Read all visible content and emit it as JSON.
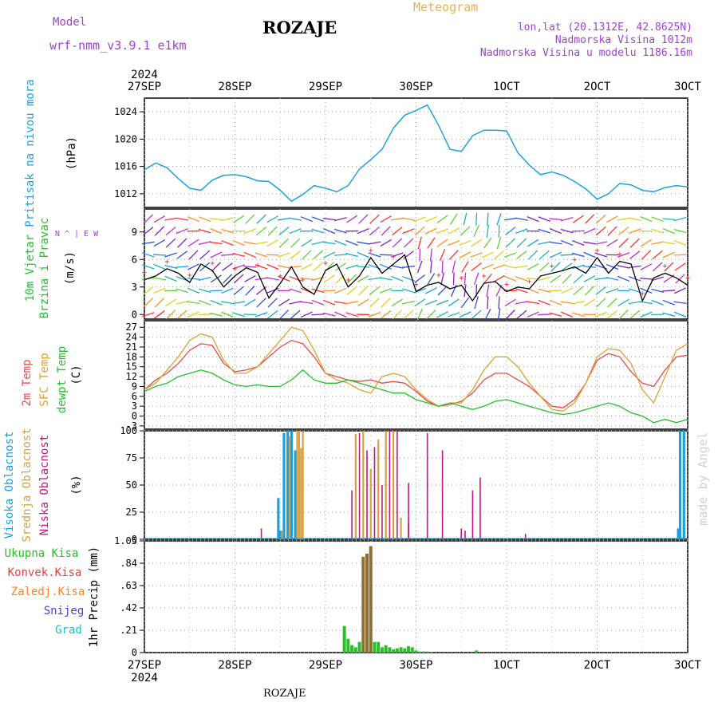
{
  "header": {
    "title": "ROZAJE",
    "subtitle": "Meteogram",
    "model_label": "Model",
    "model_name": "wrf-nmm_v3.9.1  e1km",
    "location": "lon,lat (20.1312E, 42.8625N)",
    "elevation": "Nadmorska Visina 1012m",
    "model_elevation": "Nadmorska Visina u modelu 1186.16m",
    "watermark": "made by Angel"
  },
  "footer": {
    "station": "ROZAJE"
  },
  "colors": {
    "pressure": "#1aa3e0",
    "temp2m": "#e84a4a",
    "sfc_temp": "#e0a030",
    "dewpoint": "#22c02a",
    "high_cloud": "#1a9fe0",
    "mid_cloud": "#d8a040",
    "low_cloud": "#c01880",
    "precip_total": "#28c028",
    "precip_conv": "#e84040",
    "precip_strat": "#ff8020",
    "snow": "#4040e0",
    "graupel": "#20c0c0",
    "label_purple": "#a040d0"
  },
  "chart_data": [
    {
      "type": "line",
      "panel": "pressure",
      "ylabel": "Pritisak na nivou mora",
      "unit": "(hPa)",
      "ylim": [
        1010,
        1026
      ],
      "yticks": [
        1012,
        1016,
        1020,
        1024
      ],
      "x_hours": [
        0,
        3,
        6,
        9,
        12,
        15,
        18,
        21,
        24,
        27,
        30,
        33,
        36,
        39,
        42,
        45,
        48,
        51,
        54,
        57,
        60,
        63,
        66,
        69,
        72,
        75,
        78,
        81,
        84,
        87,
        90,
        93,
        96,
        99,
        102,
        105,
        108,
        111,
        114,
        117,
        120,
        123,
        126,
        129,
        132,
        135,
        138,
        141,
        144
      ],
      "values": [
        1015.5,
        1016.5,
        1015.8,
        1014.2,
        1012.8,
        1012.5,
        1014,
        1014.7,
        1014.8,
        1014.5,
        1013.9,
        1013.8,
        1012.5,
        1010.9,
        1011.9,
        1013.2,
        1012.8,
        1012.3,
        1013.2,
        1015.6,
        1017,
        1018.5,
        1021.6,
        1023.5,
        1024.2,
        1025,
        1022,
        1018.5,
        1018.2,
        1020.5,
        1021.3,
        1021.3,
        1021.2,
        1018,
        1016.2,
        1014.8,
        1015.2,
        1014.7,
        1013.8,
        1012.7,
        1011.2,
        1012,
        1013.5,
        1013.3,
        1012.5,
        1012.3,
        1012.9,
        1013.2,
        1013
      ]
    },
    {
      "type": "line",
      "panel": "wind",
      "ylabel": "10m Vjetar Brzina i Pravac",
      "unit": "(m/s)",
      "legend_compass": "N ^ | E W",
      "ylim": [
        -0.5,
        11.5
      ],
      "yticks": [
        0,
        3,
        6,
        9
      ],
      "x_hours": [
        0,
        3,
        6,
        9,
        12,
        15,
        18,
        21,
        24,
        27,
        30,
        33,
        36,
        39,
        42,
        45,
        48,
        51,
        54,
        57,
        60,
        63,
        66,
        69,
        72,
        75,
        78,
        81,
        84,
        87,
        90,
        93,
        96,
        99,
        102,
        105,
        108,
        111,
        114,
        117,
        120,
        123,
        126,
        129,
        132,
        135,
        138,
        141,
        144
      ],
      "values": [
        3.8,
        4.2,
        5,
        4.5,
        3.5,
        5.5,
        4.8,
        3,
        4.2,
        5.1,
        4.6,
        1.8,
        3.4,
        5.2,
        3,
        2.2,
        4.8,
        5.5,
        3,
        4.2,
        6.2,
        4.5,
        5.5,
        6.5,
        2.5,
        3.2,
        3.5,
        2.8,
        3.2,
        1.5,
        3.4,
        3.6,
        2.5,
        3,
        2.8,
        4.2,
        4.5,
        4.8,
        5.2,
        4.5,
        6.2,
        4.5,
        5.8,
        5.5,
        1.5,
        4,
        4.5,
        4,
        3.2
      ]
    },
    {
      "type": "line",
      "panel": "temperature",
      "ylabel": "(C)",
      "series_labels": [
        "2m Temp",
        "SFC Temp",
        "dewpt Temp"
      ],
      "ylim": [
        -4,
        29
      ],
      "yticks": [
        -3,
        0,
        3,
        6,
        9,
        12,
        15,
        18,
        21,
        24,
        27
      ],
      "x_hours": [
        0,
        3,
        6,
        9,
        12,
        15,
        18,
        21,
        24,
        27,
        30,
        33,
        36,
        39,
        42,
        45,
        48,
        51,
        54,
        57,
        60,
        63,
        66,
        69,
        72,
        75,
        78,
        81,
        84,
        87,
        90,
        93,
        96,
        99,
        102,
        105,
        108,
        111,
        114,
        117,
        120,
        123,
        126,
        129,
        132,
        135,
        138,
        141,
        144
      ],
      "series": [
        {
          "values": [
            8,
            11,
            13,
            16,
            20,
            22,
            21.5,
            16,
            13.5,
            14,
            15,
            18,
            21,
            23,
            22,
            18,
            13,
            12,
            11,
            10.5,
            11,
            10,
            10.5,
            10,
            7.5,
            4.5,
            3,
            3.5,
            4.5,
            7,
            11,
            13,
            13,
            11,
            9,
            6,
            3,
            2.5,
            5,
            10,
            17,
            19,
            18,
            13.5,
            10,
            9,
            14,
            18,
            18.5
          ]
        },
        {
          "values": [
            8,
            10,
            14,
            18,
            23,
            25,
            24,
            17,
            13,
            13,
            15,
            19,
            23,
            27,
            26,
            20,
            13,
            11,
            10,
            8,
            7,
            12,
            13,
            12,
            8,
            5,
            3,
            4,
            4,
            8,
            14,
            18,
            18,
            15,
            10,
            6,
            2,
            1.5,
            4,
            10,
            18,
            20.5,
            20,
            16,
            8,
            4,
            12,
            20,
            22
          ]
        },
        {
          "values": [
            7.5,
            9,
            10,
            12,
            13,
            14,
            13,
            11,
            9.5,
            9,
            9.5,
            9,
            9,
            11,
            14,
            11,
            10,
            10,
            11,
            10,
            9,
            8,
            7,
            7,
            5,
            4,
            3,
            4,
            3,
            2,
            3,
            4.5,
            5,
            4,
            3,
            2,
            1,
            0.5,
            1,
            2,
            3,
            4,
            3,
            1,
            0,
            -2,
            -1,
            -2,
            -1
          ]
        }
      ]
    },
    {
      "type": "bar",
      "panel": "cloud_cover",
      "ylabel": "(%)",
      "series_labels": [
        "Visoka Oblacnost",
        "Srednja Oblacnost",
        "Niska Oblacnost"
      ],
      "ylim": [
        0,
        100
      ],
      "yticks": [
        0,
        25,
        50,
        75,
        100
      ],
      "series": [
        {
          "x_hours": [
            35.5,
            36,
            37,
            38,
            39,
            40,
            141.5,
            142,
            143
          ],
          "values": [
            38,
            8,
            98,
            100,
            100,
            82,
            10,
            100,
            100
          ]
        },
        {
          "x_hours": [
            36.5,
            38.5,
            40.5,
            41,
            41.5,
            42,
            56,
            58,
            60,
            62,
            64,
            66,
            68,
            70,
            72,
            74
          ],
          "values": [
            8,
            95,
            100,
            100,
            84,
            100,
            97,
            100,
            65,
            92,
            100,
            100,
            20,
            15,
            0,
            0
          ]
        },
        {
          "x_hours": [
            31,
            55,
            57,
            59,
            61,
            63,
            65,
            67,
            70,
            75,
            79,
            84,
            85,
            87,
            89,
            101
          ],
          "values": [
            10,
            45,
            98,
            82,
            85,
            50,
            100,
            100,
            52,
            98,
            82,
            10,
            8,
            45,
            57,
            5
          ]
        }
      ]
    },
    {
      "type": "bar",
      "panel": "precipitation",
      "ylabel": "1hr Precip (mm)",
      "series_labels": [
        "Ukupna Kisa",
        "Konvek.Kisa",
        "Zaledj.Kisa",
        "Snijeg",
        "Grad"
      ],
      "ylim": [
        0,
        1.05
      ],
      "yticks": [
        0,
        0.21,
        0.42,
        0.63,
        0.84,
        1.05
      ],
      "x_hours": [
        53,
        54,
        55,
        56,
        57,
        58,
        59,
        60,
        61,
        62,
        63,
        64,
        65,
        66,
        67,
        68,
        69,
        70,
        71,
        72,
        73,
        74,
        75,
        76,
        88
      ],
      "values": [
        0.25,
        0.13,
        0.07,
        0.05,
        0.1,
        0.9,
        0.93,
        1.0,
        0.1,
        0.1,
        0.05,
        0.07,
        0.05,
        0.03,
        0.04,
        0.05,
        0.04,
        0.06,
        0.05,
        0.02,
        0.01,
        0.01,
        0.01,
        0.005,
        0.02
      ]
    }
  ],
  "x_axis": {
    "year": "2024",
    "labels": [
      "27SEP",
      "28SEP",
      "29SEP",
      "30SEP",
      "1OCT",
      "2OCT",
      "3OCT"
    ],
    "label_hours": [
      0,
      24,
      48,
      72,
      96,
      120,
      144
    ],
    "range_hours": [
      0,
      144
    ]
  }
}
